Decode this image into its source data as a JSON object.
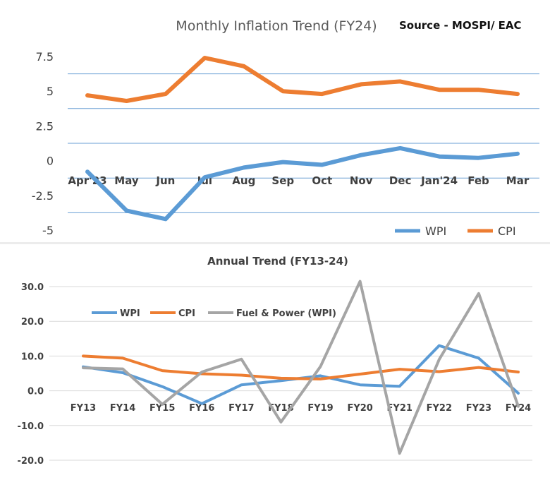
{
  "source": "Source - MOSPI/ EAC",
  "colors": {
    "wpi": "#5B9BD5",
    "cpi": "#ED7D31",
    "fuel": "#A5A5A5",
    "grid1": "#6A9FD4",
    "grid2": "#D9D9D9"
  },
  "chart_data": [
    {
      "type": "line",
      "title": "Monthly Inflation Trend (FY24)",
      "categories": [
        "Apr'23",
        "May",
        "Jun",
        "Jul",
        "Aug",
        "Sep",
        "Oct",
        "Nov",
        "Dec",
        "Jan'24",
        "Feb",
        "Mar"
      ],
      "series": [
        {
          "name": "WPI",
          "values": [
            -0.8,
            -3.6,
            -4.2,
            -1.2,
            -0.5,
            -0.1,
            -0.3,
            0.4,
            0.9,
            0.3,
            0.2,
            0.5
          ]
        },
        {
          "name": "CPI",
          "values": [
            4.7,
            4.3,
            4.8,
            7.4,
            6.8,
            5.0,
            4.8,
            5.5,
            5.7,
            5.1,
            5.1,
            4.8
          ]
        }
      ],
      "yticks": [
        "7.5",
        "5",
        "2.5",
        "0",
        "-2.5",
        "-5"
      ],
      "ylim": [
        -5,
        7.5
      ],
      "grid": true,
      "legend_position": "bottom-right"
    },
    {
      "type": "line",
      "title": "Annual Trend (FY13-24)",
      "categories": [
        "FY13",
        "FY14",
        "FY15",
        "FY16",
        "FY17",
        "FY18",
        "FY19",
        "FY20",
        "FY21",
        "FY22",
        "FY23",
        "FY24"
      ],
      "series": [
        {
          "name": "WPI",
          "values": [
            6.9,
            5.2,
            1.2,
            -3.7,
            1.7,
            2.9,
            4.3,
            1.7,
            1.3,
            13.0,
            9.4,
            -0.7
          ]
        },
        {
          "name": "CPI",
          "values": [
            10.0,
            9.4,
            5.8,
            4.9,
            4.5,
            3.6,
            3.4,
            4.8,
            6.2,
            5.5,
            6.7,
            5.4
          ]
        },
        {
          "name": "Fuel & Power (WPI)",
          "values": [
            6.6,
            6.3,
            -3.9,
            5.4,
            9.1,
            -9.0,
            7.0,
            31.5,
            -18.0,
            9.0,
            28.0,
            -4.5
          ]
        }
      ],
      "yticks": [
        "30.0",
        "20.0",
        "10.0",
        "0.0",
        "-10.0",
        "-20.0"
      ],
      "ylim": [
        -20,
        30
      ],
      "grid": true,
      "legend_position": "top-left"
    }
  ]
}
